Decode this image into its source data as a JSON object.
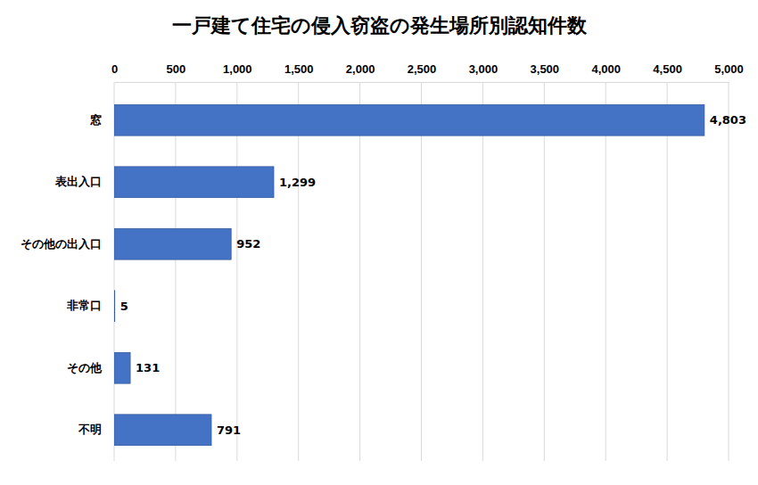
{
  "chart_data": {
    "type": "bar",
    "title": "一戸建て住宅の侵入窃盗の発生場所別認知件数",
    "orientation": "horizontal",
    "categories": [
      "窓",
      "表出入口",
      "その他の出入口",
      "非常口",
      "その他",
      "不明"
    ],
    "values": [
      4803,
      1299,
      952,
      5,
      131,
      791
    ],
    "value_labels": [
      "4,803",
      "1,299",
      "952",
      "5",
      "131",
      "791"
    ],
    "data_labels": true,
    "color": "#4472c4",
    "xlim": [
      0,
      5000
    ],
    "xticks": [
      0,
      500,
      {
        "value": 1000,
        "label": "1,000"
      },
      {
        "value": 1500,
        "label": "1,500"
      },
      {
        "value": 2000,
        "label": "2,000"
      },
      {
        "value": 2500,
        "label": "2,500"
      },
      {
        "value": 3000,
        "label": "3,000"
      },
      {
        "value": 3500,
        "label": "3,500"
      },
      {
        "value": 4000,
        "label": "4,000"
      },
      {
        "value": 4500,
        "label": "4,500"
      },
      {
        "value": 5000,
        "label": "5,000"
      }
    ],
    "grid": true
  }
}
